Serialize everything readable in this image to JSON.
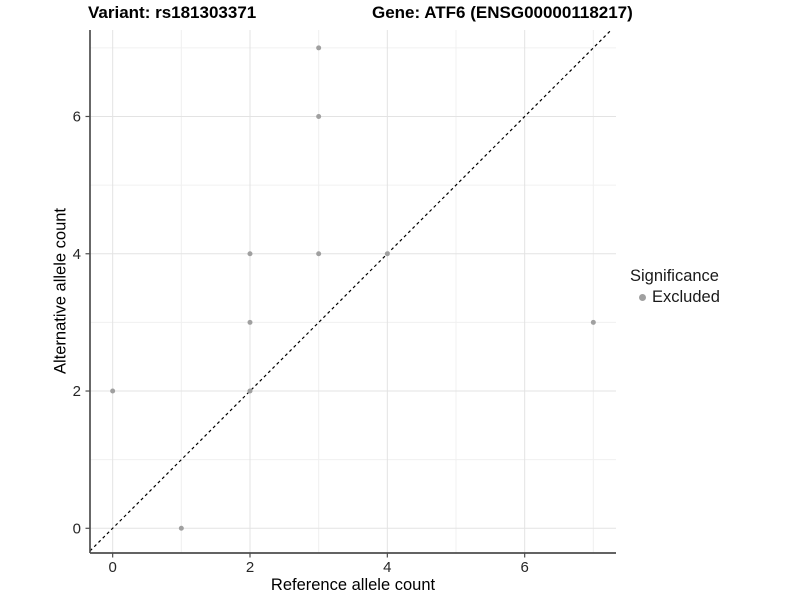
{
  "header": {
    "variant_title": "Variant: rs181303371",
    "gene_title": "Gene: ATF6 (ENSG00000118217)"
  },
  "chart_data": {
    "type": "scatter",
    "title_left": "Variant: rs181303371",
    "title_right": "Gene: ATF6 (ENSG00000118217)",
    "xlabel": "Reference allele count",
    "ylabel": "Alternative allele count",
    "xlim": [
      -0.33,
      7.33
    ],
    "ylim": [
      -0.36,
      7.26
    ],
    "x_major_ticks": [
      0,
      2,
      4,
      6
    ],
    "y_major_ticks": [
      0,
      2,
      4,
      6
    ],
    "x_minor_gridlines": [
      1,
      3,
      5,
      7
    ],
    "y_minor_gridlines": [
      1,
      3,
      5,
      7
    ],
    "grid": true,
    "legend_position": "right",
    "identity_line": {
      "slope": 1,
      "intercept": 0,
      "style": "dashed",
      "color": "#000000"
    },
    "series": [
      {
        "name": "Excluded",
        "color": "#a0a0a0",
        "points": [
          [
            0,
            2
          ],
          [
            1,
            0
          ],
          [
            2,
            2
          ],
          [
            2,
            3
          ],
          [
            2,
            4
          ],
          [
            3,
            4
          ],
          [
            3,
            6
          ],
          [
            3,
            7
          ],
          [
            4,
            4
          ],
          [
            7,
            3
          ]
        ]
      }
    ],
    "legend": {
      "title": "Significance",
      "items": [
        {
          "label": "Excluded",
          "color": "#a0a0a0"
        }
      ]
    }
  },
  "style_colors": {
    "major_grid": "#e3e3e3",
    "minor_grid": "#f0f0f0",
    "axis_line": "#4d4d4d",
    "tick_text": "#262626",
    "point": "#a0a0a0"
  }
}
